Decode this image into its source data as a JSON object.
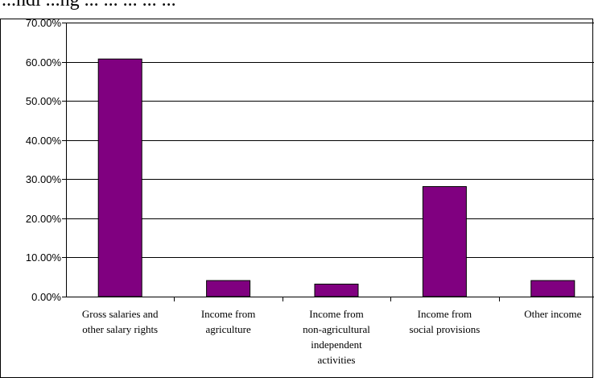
{
  "header": {
    "partial_title": "...ndi ...ng ... ... ... ... ..."
  },
  "chart_data": {
    "type": "bar",
    "categories": [
      "Gross salaries and other salary rights",
      "Income from agriculture",
      "Income from non-agricultural independent activities",
      "Income from social provisions",
      "Other income"
    ],
    "category_label_lines": [
      [
        "Gross salaries and",
        "other salary rights"
      ],
      [
        "Income from",
        "agriculture"
      ],
      [
        "Income from",
        "non-agricultural",
        "independent",
        "activities"
      ],
      [
        "Income from",
        "social provisions"
      ],
      [
        "Other income"
      ]
    ],
    "values": [
      60.7,
      4.1,
      3.2,
      28.1,
      4.1
    ],
    "ylim": [
      0,
      70
    ],
    "yticks": [
      0,
      10,
      20,
      30,
      40,
      50,
      60,
      70
    ],
    "ytick_labels": [
      "0.00%",
      "10.00%",
      "20.00%",
      "30.00%",
      "40.00%",
      "50.00%",
      "60.00%",
      "70.00%"
    ],
    "grid": true,
    "title": "",
    "xlabel": "",
    "ylabel": "",
    "colors": {
      "bar_fill": "#800080",
      "bar_stroke": "#000000",
      "grid": "#000000",
      "axis": "#000000"
    }
  }
}
